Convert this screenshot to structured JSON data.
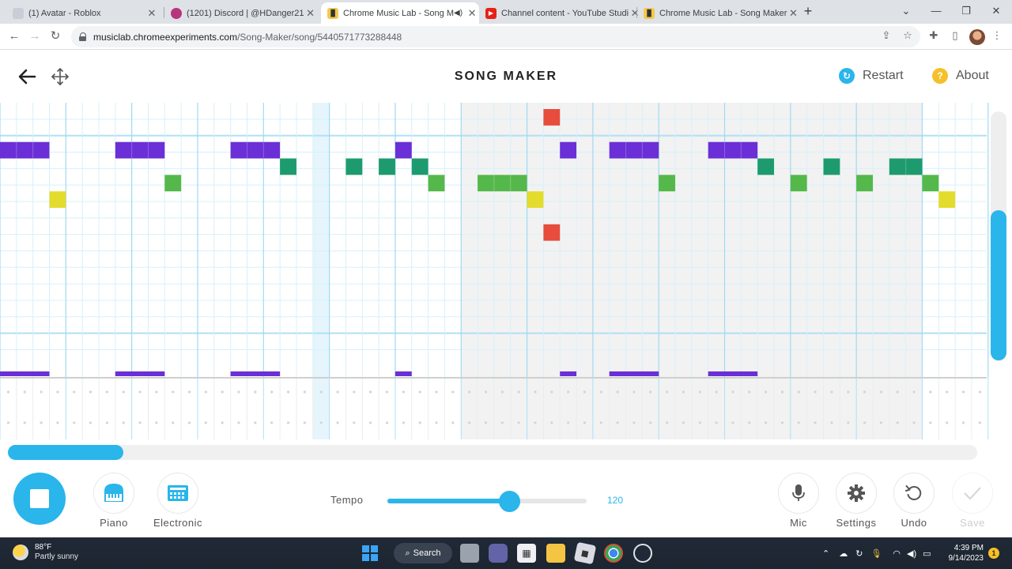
{
  "browser": {
    "tabs": [
      {
        "title": "(1) Avatar - Roblox",
        "favicon": "roblox-icon",
        "active": false
      },
      {
        "title": "(1201) Discord | @HDanger21",
        "favicon": "discord-icon",
        "active": false
      },
      {
        "title": "Chrome Music Lab - Song M",
        "favicon": "music-lab-icon",
        "active": true,
        "audio": true
      },
      {
        "title": "Channel content - YouTube Studi",
        "favicon": "youtube-icon",
        "active": false
      },
      {
        "title": "Chrome Music Lab - Song Maker",
        "favicon": "music-lab-icon",
        "active": false
      }
    ],
    "url_host": "musiclab.chromeexperiments.com",
    "url_path": "/Song-Maker/song/5440571773288448"
  },
  "app": {
    "title": "SONG MAKER",
    "restart_label": "Restart",
    "about_label": "About",
    "about_glyph": "?"
  },
  "grid": {
    "columns": 60,
    "melody_rows": 14,
    "highlighted_column": 19,
    "shaded_start_column": 28,
    "shaded_end_column": 56,
    "notes": [
      {
        "col": 33,
        "row": 0,
        "color": "#e74c3c"
      },
      {
        "col": 0,
        "row": 2,
        "len": 3,
        "color": "#6a2fd6"
      },
      {
        "col": 7,
        "row": 2,
        "len": 3,
        "color": "#6a2fd6"
      },
      {
        "col": 14,
        "row": 2,
        "len": 3,
        "color": "#6a2fd6"
      },
      {
        "col": 24,
        "row": 2,
        "len": 1,
        "color": "#6a2fd6"
      },
      {
        "col": 34,
        "row": 2,
        "len": 1,
        "color": "#6a2fd6"
      },
      {
        "col": 37,
        "row": 2,
        "len": 3,
        "color": "#6a2fd6"
      },
      {
        "col": 43,
        "row": 2,
        "len": 3,
        "color": "#6a2fd6"
      },
      {
        "col": 17,
        "row": 3,
        "color": "#1e9b6e"
      },
      {
        "col": 21,
        "row": 3,
        "color": "#1e9b6e"
      },
      {
        "col": 23,
        "row": 3,
        "color": "#1e9b6e"
      },
      {
        "col": 25,
        "row": 3,
        "color": "#1e9b6e"
      },
      {
        "col": 46,
        "row": 3,
        "color": "#1e9b6e"
      },
      {
        "col": 50,
        "row": 3,
        "color": "#1e9b6e"
      },
      {
        "col": 54,
        "row": 3,
        "len": 2,
        "color": "#1e9b6e"
      },
      {
        "col": 10,
        "row": 4,
        "color": "#55b84a"
      },
      {
        "col": 26,
        "row": 4,
        "color": "#55b84a"
      },
      {
        "col": 29,
        "row": 4,
        "len": 3,
        "color": "#55b84a"
      },
      {
        "col": 40,
        "row": 4,
        "color": "#55b84a"
      },
      {
        "col": 48,
        "row": 4,
        "color": "#55b84a"
      },
      {
        "col": 52,
        "row": 4,
        "color": "#55b84a"
      },
      {
        "col": 56,
        "row": 4,
        "color": "#55b84a"
      },
      {
        "col": 3,
        "row": 5,
        "color": "#e4dc2c"
      },
      {
        "col": 32,
        "row": 5,
        "color": "#e4dc2c"
      },
      {
        "col": 57,
        "row": 5,
        "color": "#e4dc2c"
      },
      {
        "col": 33,
        "row": 7,
        "color": "#e74c3c"
      }
    ]
  },
  "controls": {
    "stop_label": "Stop",
    "piano_label": "Piano",
    "electronic_label": "Electronic",
    "tempo_label": "Tempo",
    "tempo_value": "120",
    "tempo_fraction": 0.61,
    "mic_label": "Mic",
    "settings_label": "Settings",
    "undo_label": "Undo",
    "save_label": "Save",
    "accent_color": "#2ab5eb"
  },
  "taskbar": {
    "temperature": "88°F",
    "weather": "Partly sunny",
    "search_label": "Search",
    "time": "4:39 PM",
    "date": "9/14/2023",
    "notification_count": "1"
  }
}
